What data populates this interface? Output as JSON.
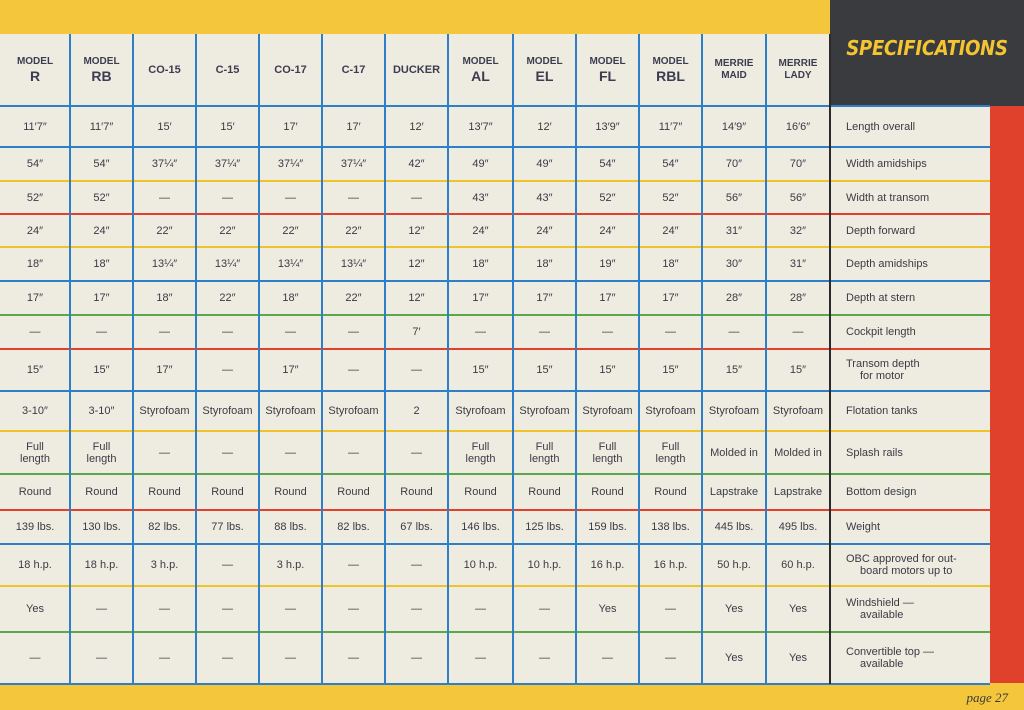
{
  "page": {
    "section_title": "SPECIFICATIONS",
    "page_label": "page 27"
  },
  "colors": {
    "blue_rule": "#2f7fc8",
    "red_rule": "#e0412d",
    "yellow_rule": "#f0c428",
    "green_rule": "#5aa84a",
    "banner_bg": "#3a3b3f",
    "banner_text": "#f4c531"
  },
  "columns": [
    {
      "line1": "MODEL",
      "line2": "R"
    },
    {
      "line1": "MODEL",
      "line2": "RB"
    },
    {
      "line1": "",
      "line2": "CO-15"
    },
    {
      "line1": "",
      "line2": "C-15"
    },
    {
      "line1": "",
      "line2": "CO-17"
    },
    {
      "line1": "",
      "line2": "C-17"
    },
    {
      "line1": "",
      "line2": "DUCKER"
    },
    {
      "line1": "MODEL",
      "line2": "AL"
    },
    {
      "line1": "MODEL",
      "line2": "EL"
    },
    {
      "line1": "MODEL",
      "line2": "FL"
    },
    {
      "line1": "MODEL",
      "line2": "RBL"
    },
    {
      "line1": "MERRIE",
      "line2": "MAID"
    },
    {
      "line1": "MERRIE",
      "line2": "LADY"
    }
  ],
  "rows": [
    {
      "label1": "Length overall",
      "label2": "",
      "values": [
        "11′7″",
        "11′7″",
        "15′",
        "15′",
        "17′",
        "17′",
        "12′",
        "13′7″",
        "12′",
        "13′9″",
        "11′7″",
        "14′9″",
        "16′6″"
      ]
    },
    {
      "label1": "Width amidships",
      "label2": "",
      "values": [
        "54″",
        "54″",
        "37¼″",
        "37¼″",
        "37¼″",
        "37¼″",
        "42″",
        "49″",
        "49″",
        "54″",
        "54″",
        "70″",
        "70″"
      ]
    },
    {
      "label1": "Width at transom",
      "label2": "",
      "values": [
        "52″",
        "52″",
        "—",
        "—",
        "—",
        "—",
        "—",
        "43″",
        "43″",
        "52″",
        "52″",
        "56″",
        "56″"
      ]
    },
    {
      "label1": "Depth forward",
      "label2": "",
      "values": [
        "24″",
        "24″",
        "22″",
        "22″",
        "22″",
        "22″",
        "12″",
        "24″",
        "24″",
        "24″",
        "24″",
        "31″",
        "32″"
      ]
    },
    {
      "label1": "Depth amidships",
      "label2": "",
      "values": [
        "18″",
        "18″",
        "13¼″",
        "13¼″",
        "13¼″",
        "13¼″",
        "12″",
        "18″",
        "18″",
        "19″",
        "18″",
        "30″",
        "31″"
      ]
    },
    {
      "label1": "Depth at stern",
      "label2": "",
      "values": [
        "17″",
        "17″",
        "18″",
        "22″",
        "18″",
        "22″",
        "12″",
        "17″",
        "17″",
        "17″",
        "17″",
        "28″",
        "28″"
      ]
    },
    {
      "label1": "Cockpit length",
      "label2": "",
      "values": [
        "—",
        "—",
        "—",
        "—",
        "—",
        "—",
        "7′",
        "—",
        "—",
        "—",
        "—",
        "—",
        "—"
      ]
    },
    {
      "label1": "Transom depth",
      "label2": "for motor",
      "values": [
        "15″",
        "15″",
        "17″",
        "—",
        "17″",
        "—",
        "—",
        "15″",
        "15″",
        "15″",
        "15″",
        "15″",
        "15″"
      ]
    },
    {
      "label1": "Flotation tanks",
      "label2": "",
      "values": [
        "3-10″",
        "3-10″",
        "Styrofoam",
        "Styrofoam",
        "Styrofoam",
        "Styrofoam",
        "2",
        "Styrofoam",
        "Styrofoam",
        "Styrofoam",
        "Styrofoam",
        "Styrofoam",
        "Styrofoam"
      ]
    },
    {
      "label1": "Splash rails",
      "label2": "",
      "values": [
        "Full\nlength",
        "Full\nlength",
        "—",
        "—",
        "—",
        "—",
        "—",
        "Full\nlength",
        "Full\nlength",
        "Full\nlength",
        "Full\nlength",
        "Molded in",
        "Molded in"
      ]
    },
    {
      "label1": "Bottom design",
      "label2": "",
      "values": [
        "Round",
        "Round",
        "Round",
        "Round",
        "Round",
        "Round",
        "Round",
        "Round",
        "Round",
        "Round",
        "Round",
        "Lapstrake",
        "Lapstrake"
      ]
    },
    {
      "label1": "Weight",
      "label2": "",
      "values": [
        "139 lbs.",
        "130 lbs.",
        "82 lbs.",
        "77 lbs.",
        "88 lbs.",
        "82 lbs.",
        "67 lbs.",
        "146 lbs.",
        "125 lbs.",
        "159 lbs.",
        "138 lbs.",
        "445 lbs.",
        "495 lbs."
      ]
    },
    {
      "label1": "OBC approved for out-",
      "label2": "board motors up to",
      "values": [
        "18 h.p.",
        "18 h.p.",
        "3 h.p.",
        "—",
        "3 h.p.",
        "—",
        "—",
        "10 h.p.",
        "10 h.p.",
        "16 h.p.",
        "16 h.p.",
        "50 h.p.",
        "60 h.p."
      ]
    },
    {
      "label1": "Windshield —",
      "label2": "available",
      "values": [
        "Yes",
        "—",
        "—",
        "—",
        "—",
        "—",
        "—",
        "—",
        "—",
        "Yes",
        "—",
        "Yes",
        "Yes"
      ]
    },
    {
      "label1": "Convertible top —",
      "label2": "available",
      "values": [
        "—",
        "—",
        "—",
        "—",
        "—",
        "—",
        "—",
        "—",
        "—",
        "—",
        "—",
        "Yes",
        "Yes"
      ]
    }
  ]
}
